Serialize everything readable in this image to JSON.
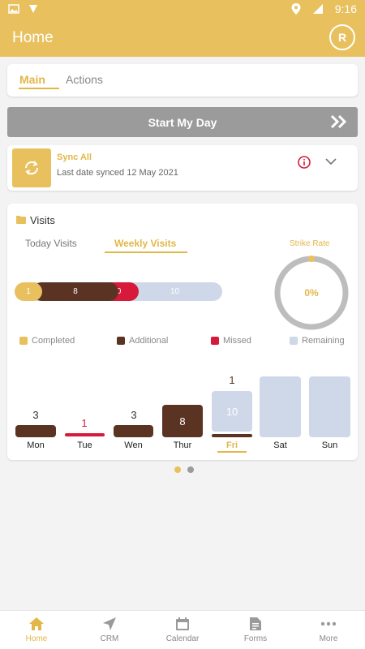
{
  "status_bar": {
    "time": "9:16"
  },
  "header": {
    "title": "Home",
    "avatar_initial": "R"
  },
  "tabs": {
    "main": "Main",
    "actions": "Actions"
  },
  "start_day": {
    "label": "Start My Day"
  },
  "sync": {
    "title": "Sync All",
    "subtitle": "Last date synced 12 May 2021"
  },
  "visits": {
    "title": "Visits",
    "tab_today": "Today Visits",
    "tab_weekly": "Weekly Visits",
    "progress": {
      "completed": "1",
      "additional": "8",
      "missed": "0",
      "remaining": "10"
    },
    "strike_rate_label": "Strike Rate",
    "strike_rate_value": "0%",
    "legend": {
      "completed": "Completed",
      "additional": "Additional",
      "missed": "Missed",
      "remaining": "Remaining"
    },
    "days": [
      {
        "label": "Mon",
        "count": "3"
      },
      {
        "label": "Tue",
        "count": "1"
      },
      {
        "label": "Wen",
        "count": "3"
      },
      {
        "label": "Thur",
        "count": "8"
      },
      {
        "label": "Fri",
        "top_count": "1",
        "remaining": "10"
      },
      {
        "label": "Sat"
      },
      {
        "label": "Sun"
      }
    ]
  },
  "colors": {
    "accent": "#e8c15e",
    "additional": "#5b3322",
    "missed": "#d7193a",
    "remaining": "#cfd8e8"
  },
  "bottom_nav": {
    "home": "Home",
    "crm": "CRM",
    "calendar": "Calendar",
    "forms": "Forms",
    "more": "More"
  }
}
